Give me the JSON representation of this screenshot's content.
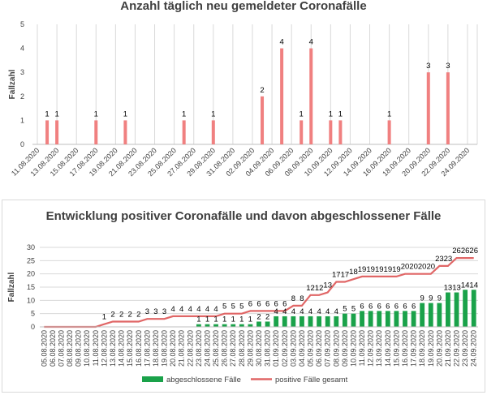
{
  "chart_data": [
    {
      "type": "bar",
      "title": "Anzahl täglich neu gemeldeter Coronafälle",
      "ylabel": "Fallzahl",
      "ylim": [
        0,
        5
      ],
      "yticks": [
        0,
        1,
        2,
        3,
        4,
        5
      ],
      "grid": "vertical",
      "color": "#f08080",
      "tick_labels": [
        "11.08.2020",
        "13.08.2020",
        "15.08.2020",
        "17.08.2020",
        "19.08.2020",
        "21.08.2020",
        "23.08.2020",
        "25.08.2020",
        "27.08.2020",
        "29.08.2020",
        "31.08.2020",
        "02.09.2020",
        "04.09.2020",
        "06.09.2020",
        "08.09.2020",
        "10.09.2020",
        "12.09.2020",
        "14.09.2020",
        "16.09.2020",
        "18.09.2020",
        "20.09.2020",
        "22.09.2020",
        "24.09.2020"
      ],
      "bars": [
        {
          "x": "12.08.2020",
          "value": 1
        },
        {
          "x": "13.08.2020",
          "value": 1
        },
        {
          "x": "17.08.2020",
          "value": 1
        },
        {
          "x": "20.08.2020",
          "value": 1
        },
        {
          "x": "26.08.2020",
          "value": 1
        },
        {
          "x": "29.08.2020",
          "value": 1
        },
        {
          "x": "03.09.2020",
          "value": 2
        },
        {
          "x": "05.09.2020",
          "value": 4
        },
        {
          "x": "07.09.2020",
          "value": 1
        },
        {
          "x": "08.09.2020",
          "value": 4
        },
        {
          "x": "10.09.2020",
          "value": 1
        },
        {
          "x": "11.09.2020",
          "value": 1
        },
        {
          "x": "16.09.2020",
          "value": 1
        },
        {
          "x": "20.09.2020",
          "value": 3
        },
        {
          "x": "22.09.2020",
          "value": 3
        }
      ]
    },
    {
      "type": "bar",
      "title": "Entwicklung positiver Coronafälle und davon abgeschlossener Fälle",
      "ylabel": "Fallzahl",
      "ylim": [
        0,
        30
      ],
      "yticks": [
        0,
        5,
        10,
        15,
        20,
        25,
        30
      ],
      "grid": "horizontal",
      "legend_position": "bottom",
      "categories": [
        "05.08.2020",
        "06.08.2020",
        "07.08.2020",
        "08.08.2020",
        "09.08.2020",
        "10.08.2020",
        "11.08.2020",
        "12.08.2020",
        "13.08.2020",
        "14.08.2020",
        "15.08.2020",
        "16.08.2020",
        "17.08.2020",
        "18.08.2020",
        "19.08.2020",
        "20.08.2020",
        "21.08.2020",
        "22.08.2020",
        "23.08.2020",
        "24.08.2020",
        "25.08.2020",
        "26.08.2020",
        "27.08.2020",
        "28.08.2020",
        "29.08.2020",
        "30.08.2020",
        "31.08.2020",
        "01.09.2020",
        "02.09.2020",
        "03.09.2020",
        "04.09.2020",
        "05.09.2020",
        "06.09.2020",
        "07.09.2020",
        "08.09.2020",
        "09.09.2020",
        "10.09.2020",
        "11.09.2020",
        "12.09.2020",
        "13.09.2020",
        "14.09.2020",
        "15.09.2020",
        "16.09.2020",
        "17.09.2020",
        "18.09.2020",
        "19.09.2020",
        "20.09.2020",
        "21.09.2020",
        "22.09.2020",
        "23.09.2020",
        "24.09.2020"
      ],
      "series": [
        {
          "name": "abgeschlossene Fälle",
          "type": "bar",
          "color": "#1aa24a",
          "values": [
            0,
            0,
            0,
            0,
            0,
            0,
            0,
            0,
            0,
            0,
            0,
            0,
            0,
            0,
            0,
            0,
            0,
            0,
            1,
            1,
            1,
            1,
            1,
            1,
            1,
            2,
            2,
            4,
            4,
            4,
            4,
            4,
            4,
            4,
            4,
            5,
            5,
            6,
            6,
            6,
            6,
            6,
            6,
            6,
            9,
            9,
            9,
            13,
            13,
            14,
            14
          ]
        },
        {
          "name": "positive Fälle gesamt",
          "type": "line",
          "color": "#e06666",
          "values": [
            0,
            0,
            0,
            0,
            0,
            0,
            0,
            1,
            2,
            2,
            2,
            2,
            3,
            3,
            3,
            4,
            4,
            4,
            4,
            4,
            4,
            5,
            5,
            5,
            6,
            6,
            6,
            6,
            6,
            8,
            8,
            12,
            12,
            13,
            17,
            17,
            18,
            19,
            19,
            19,
            19,
            19,
            20,
            20,
            20,
            20,
            23,
            23,
            26,
            26,
            26
          ]
        }
      ],
      "line_labels_shown": [
        false,
        false,
        false,
        false,
        false,
        false,
        false,
        true,
        true,
        true,
        true,
        true,
        true,
        true,
        true,
        true,
        true,
        true,
        true,
        true,
        true,
        true,
        true,
        true,
        true,
        true,
        true,
        true,
        true,
        true,
        true,
        true,
        true,
        true,
        true,
        true,
        true,
        true,
        true,
        true,
        true,
        true,
        true,
        true,
        true,
        true,
        true,
        true,
        true,
        true,
        true
      ],
      "bar_labels_shown": [
        false,
        false,
        false,
        false,
        false,
        false,
        false,
        false,
        false,
        false,
        false,
        false,
        false,
        false,
        false,
        false,
        false,
        false,
        true,
        true,
        true,
        true,
        true,
        true,
        true,
        true,
        true,
        true,
        true,
        true,
        true,
        true,
        true,
        true,
        true,
        true,
        true,
        true,
        true,
        true,
        true,
        true,
        true,
        true,
        true,
        true,
        true,
        true,
        true,
        true,
        true
      ]
    }
  ]
}
